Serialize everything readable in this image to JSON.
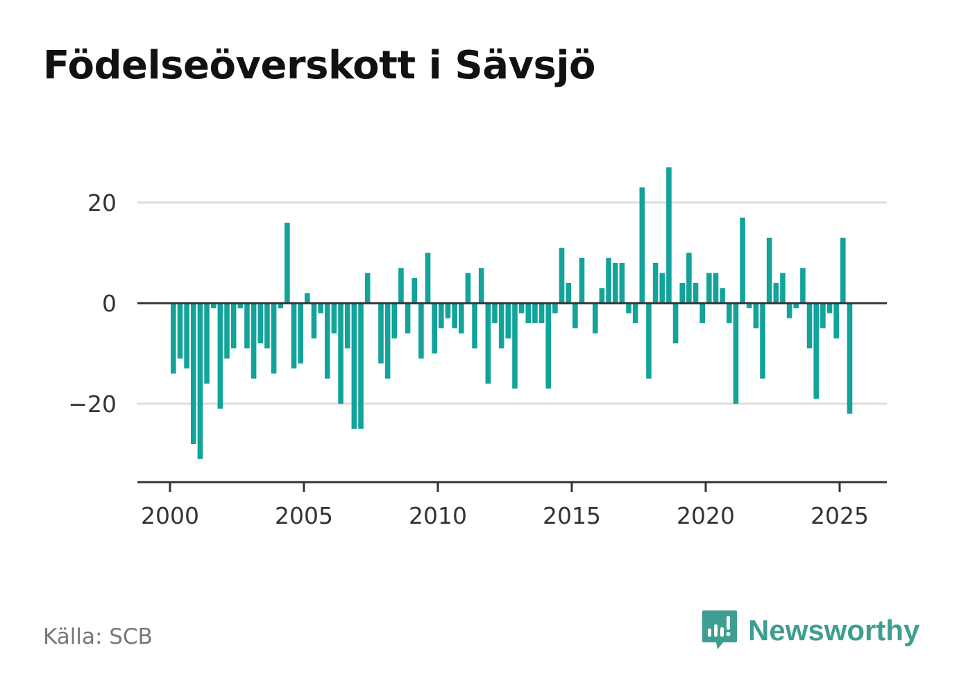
{
  "title": "Födelseöverskott i Sävsjö",
  "source": "Källa: SCB",
  "brand": {
    "name": "Newsworthy",
    "logo_icon": "newsworthy-chart-bubble-icon"
  },
  "colors": {
    "bar": "#12a39b",
    "brand": "#3f9e91",
    "grid": "#dddddd",
    "axis": "#333333"
  },
  "chart_data": {
    "type": "bar",
    "title": "Födelseöverskott i Sävsjö",
    "xlabel": "",
    "ylabel": "",
    "grid": true,
    "ylim": [
      -36,
      32
    ],
    "xlim": [
      1999.0,
      2026.9
    ],
    "y_ticks": [
      20,
      0,
      -20
    ],
    "y_tick_labels": [
      "20",
      "0",
      "−20"
    ],
    "x_ticks": [
      2000,
      2005,
      2010,
      2015,
      2020,
      2025
    ],
    "x_tick_labels": [
      "2000",
      "2005",
      "2010",
      "2015",
      "2020",
      "2025"
    ],
    "frequency": "quarterly",
    "start": "2000-Q1",
    "values": [
      -14,
      -11,
      -13,
      -28,
      -31,
      -16,
      -1,
      -21,
      -11,
      -9,
      -1,
      -9,
      -15,
      -8,
      -9,
      -14,
      -1,
      16,
      -13,
      -12,
      2,
      -7,
      -2,
      -15,
      -6,
      -20,
      -9,
      -25,
      -25,
      6,
      0,
      -12,
      -15,
      -7,
      7,
      -6,
      5,
      -11,
      10,
      -10,
      -5,
      -3,
      -5,
      -6,
      6,
      -9,
      7,
      -16,
      -4,
      -9,
      -7,
      -17,
      -2,
      -4,
      -4,
      -4,
      -17,
      -2,
      11,
      4,
      -5,
      9,
      0,
      -6,
      3,
      9,
      8,
      8,
      -2,
      -4,
      23,
      -15,
      8,
      6,
      27,
      -8,
      4,
      10,
      4,
      -4,
      6,
      6,
      3,
      -4,
      -20,
      17,
      -1,
      -5,
      -15,
      13,
      4,
      6,
      -3,
      -1,
      7,
      -9,
      -19,
      -5,
      -2,
      -7,
      13,
      -22
    ]
  }
}
